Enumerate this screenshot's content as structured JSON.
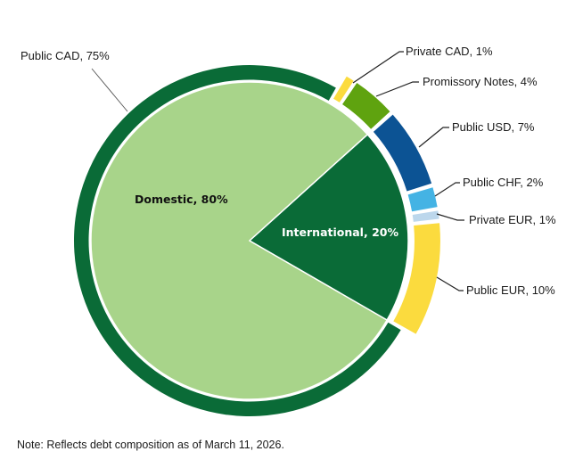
{
  "chart_data": {
    "type": "pie",
    "subtype": "nested-pie (inner pie with outer ring)",
    "title": "",
    "inner": {
      "categories": [
        "Domestic",
        "International"
      ],
      "values": [
        80,
        20
      ],
      "labels": [
        "Domestic, 80%",
        "International, 20%"
      ],
      "colors": [
        "#a8d48a",
        "#0a6b37"
      ]
    },
    "outer": {
      "categories": [
        "Public CAD",
        "Private CAD",
        "Promissory Notes",
        "Public USD",
        "Public CHF",
        "Private EUR",
        "Public EUR"
      ],
      "values": [
        75,
        1,
        4,
        7,
        2,
        1,
        10
      ],
      "labels": [
        "Public CAD, 75%",
        "Private CAD, 1%",
        "Promissory Notes, 4%",
        "Public USD, 7%",
        "Public CHF, 2%",
        "Private EUR, 1%",
        "Public EUR, 10%"
      ],
      "colors": [
        "#0a6b37",
        "#fbdb3e",
        "#5fa30f",
        "#0c5394",
        "#44b3e4",
        "#bcd7ec",
        "#fbdb3e"
      ],
      "parent": [
        "Domestic",
        "Domestic",
        "Domestic",
        "International",
        "International",
        "International",
        "International"
      ]
    },
    "legend": "none (data labels with leader lines)",
    "annotations": [
      "Note: Reflects debt composition as of March 11, 2026."
    ]
  },
  "labels": {
    "domestic": "Domestic, 80%",
    "international": "International, 20%",
    "public_cad": "Public CAD, 75%",
    "private_cad": "Private CAD, 1%",
    "promissory": "Promissory Notes, 4%",
    "public_usd": "Public USD, 7%",
    "public_chf": "Public CHF, 2%",
    "private_eur": "Private EUR, 1%",
    "public_eur": "Public EUR, 10%"
  },
  "note": "Note: Reflects debt composition as of March 11, 2026."
}
